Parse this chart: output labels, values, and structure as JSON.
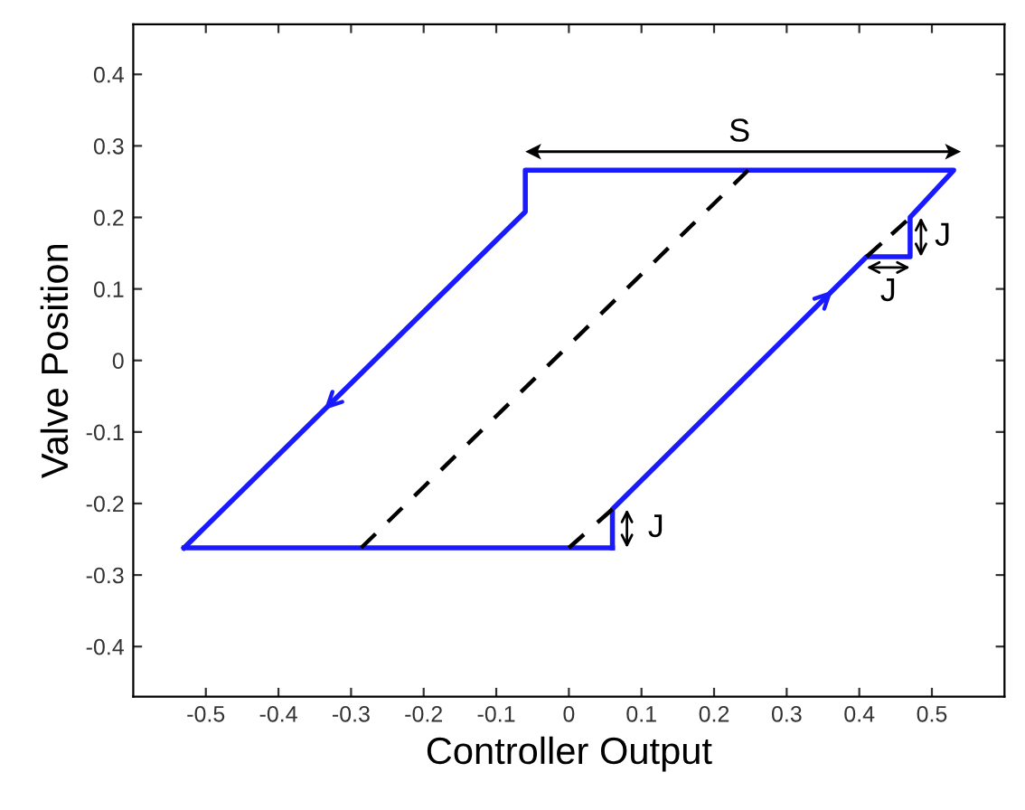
{
  "chart_data": {
    "type": "line",
    "xlabel": "Controller Output",
    "ylabel": "Valve Position",
    "xlim": [
      -0.6,
      0.6
    ],
    "ylim": [
      -0.47,
      0.47
    ],
    "xticks": [
      -0.5,
      -0.4,
      -0.3,
      -0.2,
      -0.1,
      0,
      0.1,
      0.2,
      0.3,
      0.4,
      0.5
    ],
    "yticks": [
      -0.4,
      -0.3,
      -0.2,
      -0.1,
      0,
      0.1,
      0.2,
      0.3,
      0.4
    ],
    "grid": false,
    "marker": "none",
    "series": [
      {
        "color": "#1a1aff",
        "line_style": "solid",
        "x": [
          -0.53,
          -0.06,
          -0.06,
          0.53,
          0.47,
          0.47,
          0.41,
          0.06,
          0.06
        ],
        "values": [
          -0.262,
          0.208,
          0.266,
          0.266,
          0.2,
          0.145,
          0.145,
          -0.208,
          -0.262
        ]
      },
      {
        "color": "#1a1aff",
        "line_style": "solid",
        "x": [
          0.06,
          -0.53
        ],
        "values": [
          -0.262,
          -0.262
        ]
      },
      {
        "color": "#000000",
        "line_style": "dashed",
        "x": [
          0.247,
          -0.286
        ],
        "values": [
          0.266,
          -0.262
        ]
      },
      {
        "color": "#000000",
        "line_style": "dashed",
        "x": [
          0.0,
          0.06
        ],
        "values": [
          -0.262,
          -0.208
        ]
      },
      {
        "color": "#000000",
        "line_style": "dashed",
        "x": [
          0.41,
          0.465
        ],
        "values": [
          0.145,
          0.195
        ]
      }
    ],
    "annotations": [
      "S",
      "J",
      "J",
      "J"
    ]
  }
}
